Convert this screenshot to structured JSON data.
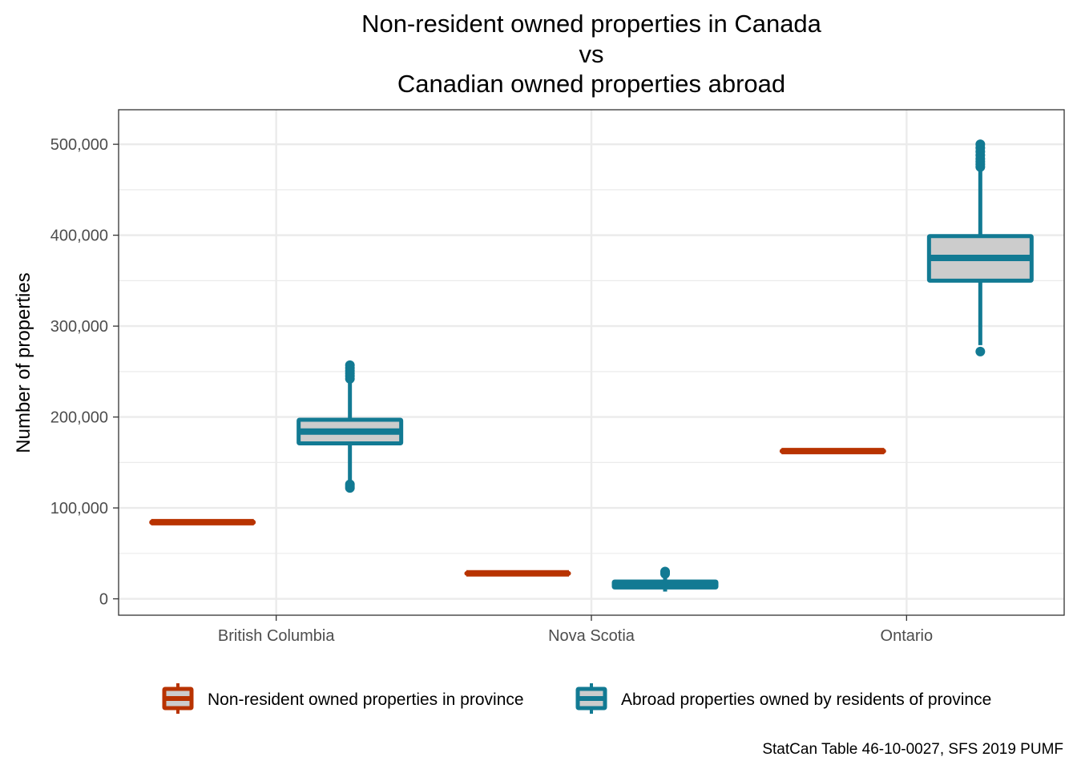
{
  "chart_data": {
    "type": "boxplot",
    "title_lines": [
      "Non-resident owned properties in Canada",
      "vs",
      "Canadian owned properties abroad"
    ],
    "xlabel": "",
    "ylabel": "Number of properties",
    "ylim": [
      -18000,
      538000
    ],
    "y_ticks": [
      0,
      100000,
      200000,
      300000,
      400000,
      500000
    ],
    "y_tick_labels": [
      "0",
      "100,000",
      "200,000",
      "300,000",
      "400,000",
      "500,000"
    ],
    "y_minor_ticks": [
      50000,
      150000,
      250000,
      350000,
      450000
    ],
    "categories": [
      "British Columbia",
      "Nova Scotia",
      "Ontario"
    ],
    "grid": true,
    "legend_position": "bottom",
    "caption": "StatCan Table 46-10-0027, SFS 2019 PUMF",
    "series": [
      {
        "name": "Non-resident owned properties in province",
        "color": "#b83300",
        "fill": "#cccccc",
        "boxes": [
          {
            "category": "British Columbia",
            "q1": 83500,
            "median": 84300,
            "q3": 85000,
            "whisker_low": 82800,
            "whisker_high": 85700,
            "outliers": []
          },
          {
            "category": "Nova Scotia",
            "q1": 27500,
            "median": 28000,
            "q3": 28500,
            "whisker_low": 27000,
            "whisker_high": 29000,
            "outliers": []
          },
          {
            "category": "Ontario",
            "q1": 161800,
            "median": 162500,
            "q3": 163200,
            "whisker_low": 161000,
            "whisker_high": 164000,
            "outliers": []
          }
        ]
      },
      {
        "name": "Abroad properties owned by residents of province",
        "color": "#127a93",
        "fill": "#cccccc",
        "boxes": [
          {
            "category": "British Columbia",
            "q1": 171000,
            "median": 184000,
            "q3": 197000,
            "whisker_low": 128000,
            "whisker_high": 239000,
            "outliers": [
              122000,
              124000,
              126000,
              242000,
              245000,
              248000,
              251000,
              254000,
              257000
            ]
          },
          {
            "category": "Nova Scotia",
            "q1": 12500,
            "median": 16000,
            "q3": 19000,
            "whisker_low": 8000,
            "whisker_high": 26000,
            "outliers": [
              27500,
              29000,
              30000
            ]
          },
          {
            "category": "Ontario",
            "q1": 350000,
            "median": 375000,
            "q3": 399000,
            "whisker_low": 279000,
            "whisker_high": 472000,
            "outliers": [
              272000,
              475000,
              478000,
              481000,
              484000,
              488000,
              492000,
              496000,
              500000
            ]
          }
        ]
      }
    ]
  }
}
